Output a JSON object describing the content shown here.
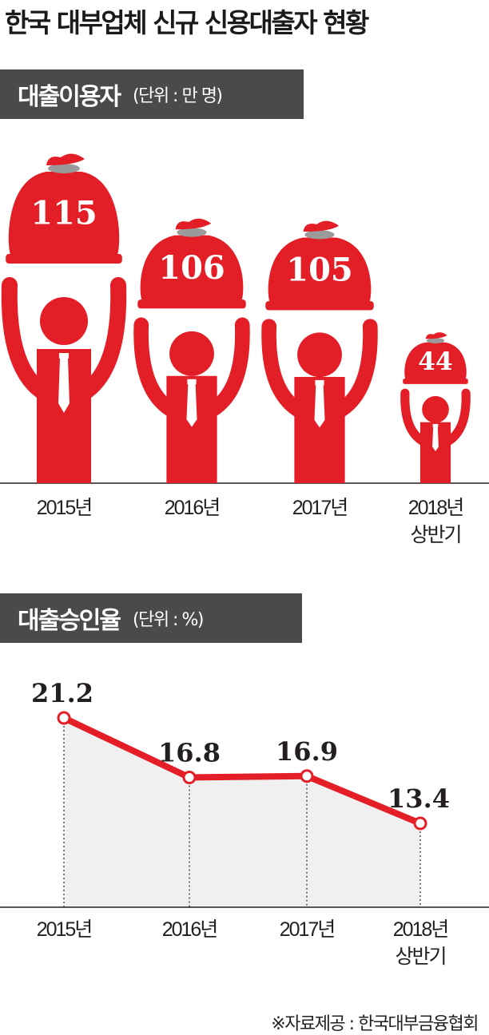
{
  "title": "한국 대부업체 신규 신용대출자 현황",
  "source": "※자료제공 : 한국대부금융협회",
  "colors": {
    "accent": "#e31e26",
    "bag_tie": "#9a9a9a",
    "section_bar": "#4a4a4a",
    "area_fill": "#f0f0f0"
  },
  "chart_data": [
    {
      "type": "bar",
      "title": "대출이용자",
      "unit": "(단위 : 만 명)",
      "categories": [
        "2015년",
        "2016년",
        "2017년",
        "2018년 상반기"
      ],
      "values": [
        115,
        106,
        105,
        44
      ],
      "value_labels": [
        "115",
        "106",
        "105",
        "44"
      ],
      "grid": false,
      "legend": "none"
    },
    {
      "type": "line",
      "title": "대출승인율",
      "unit": "(단위 : %)",
      "categories": [
        "2015년",
        "2016년",
        "2017년",
        "2018년 상반기"
      ],
      "values": [
        21.2,
        16.8,
        16.9,
        13.4
      ],
      "value_labels": [
        "21.2",
        "16.8",
        "16.9",
        "13.4"
      ],
      "grid": false,
      "legend": "none"
    }
  ],
  "xlabels": [
    [
      "2015년"
    ],
    [
      "2016년"
    ],
    [
      "2017년"
    ],
    [
      "2018년",
      "상반기"
    ]
  ]
}
